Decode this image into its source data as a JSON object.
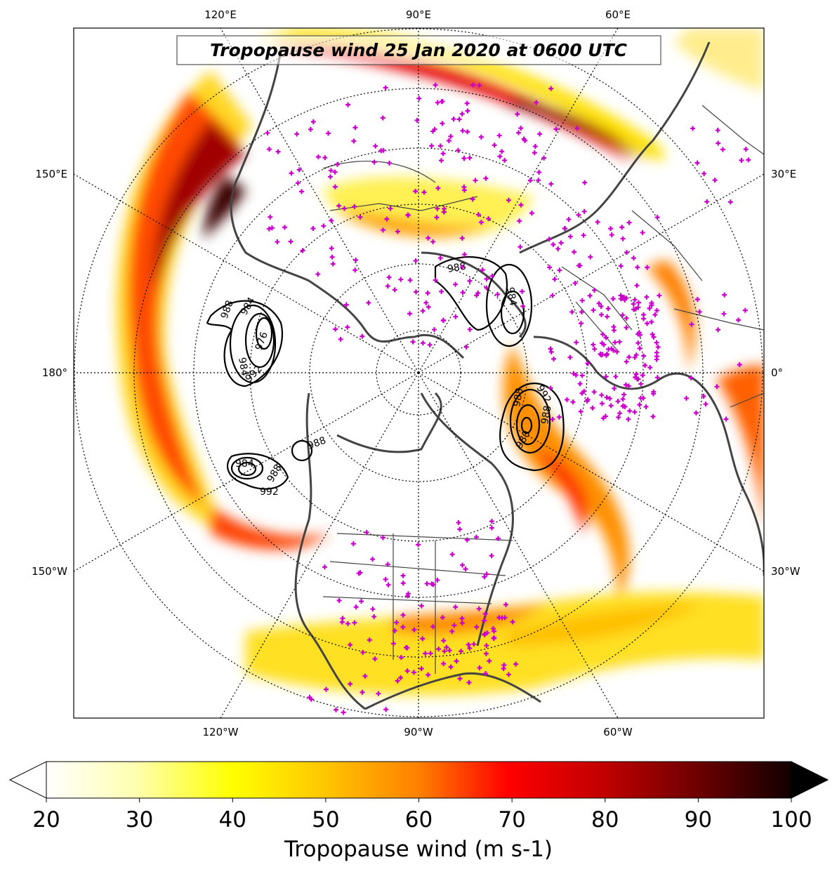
{
  "map": {
    "title": "Tropopause wind 25 Jan 2020 at 0600 UTC",
    "projection": "north polar stereographic",
    "longitude_labels": {
      "top": [
        "120°E",
        "90°E",
        "60°E"
      ],
      "bottom": [
        "120°W",
        "90°W",
        "60°W"
      ],
      "left": [
        "150°E",
        "180°",
        "150°W"
      ],
      "right": [
        "30°E",
        "0°",
        "30°W"
      ]
    },
    "overlays": {
      "pressure_contour_labels": [
        "988",
        "984",
        "976",
        "984",
        "992",
        "988",
        "984",
        "988",
        "984",
        "992",
        "988",
        "992",
        "988",
        "980",
        "988",
        "992"
      ],
      "observation_marker_color": "#cc00cc",
      "coastline_color": "#444444",
      "contour_color": "#000000"
    }
  },
  "colorbar": {
    "label": "Tropopause wind (m s-1)",
    "ticks": [
      "20",
      "30",
      "40",
      "50",
      "60",
      "70",
      "80",
      "90",
      "100"
    ],
    "min": 20,
    "max": 100,
    "extend": "both",
    "colormap": "hot_r"
  }
}
